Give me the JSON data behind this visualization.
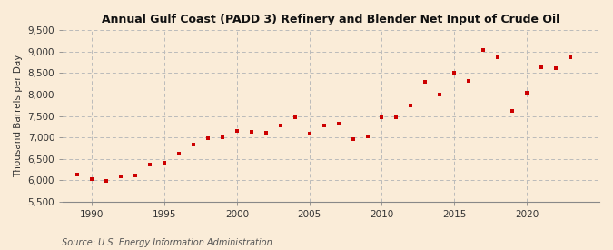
{
  "title": "Annual Gulf Coast (PADD 3) Refinery and Blender Net Input of Crude Oil",
  "ylabel": "Thousand Barrels per Day",
  "source": "Source: U.S. Energy Information Administration",
  "background_color": "#faecd8",
  "plot_bg_color": "#faecd8",
  "marker_color": "#cc0000",
  "grid_color": "#bbbbbb",
  "ylim": [
    5500,
    9500
  ],
  "yticks": [
    5500,
    6000,
    6500,
    7000,
    7500,
    8000,
    8500,
    9000,
    9500
  ],
  "xticks": [
    1990,
    1995,
    2000,
    2005,
    2010,
    2015,
    2020
  ],
  "xlim": [
    1988.0,
    2025.0
  ],
  "years": [
    1989,
    1990,
    1991,
    1992,
    1993,
    1994,
    1995,
    1996,
    1997,
    1998,
    1999,
    2000,
    2001,
    2002,
    2003,
    2004,
    2005,
    2006,
    2007,
    2008,
    2009,
    2010,
    2011,
    2012,
    2013,
    2014,
    2015,
    2016,
    2017,
    2018,
    2019,
    2020,
    2021,
    2022,
    2023
  ],
  "values": [
    6130,
    6020,
    5990,
    6090,
    6100,
    6370,
    6400,
    6620,
    6830,
    6980,
    7000,
    7150,
    7120,
    7100,
    7280,
    7460,
    7090,
    7280,
    7310,
    6960,
    7030,
    7470,
    7460,
    7750,
    8300,
    7990,
    8500,
    8320,
    9040,
    8860,
    7620,
    8050,
    8630,
    8610,
    8870
  ],
  "title_fontsize": 9,
  "tick_fontsize": 7.5,
  "ylabel_fontsize": 7.5,
  "source_fontsize": 7
}
